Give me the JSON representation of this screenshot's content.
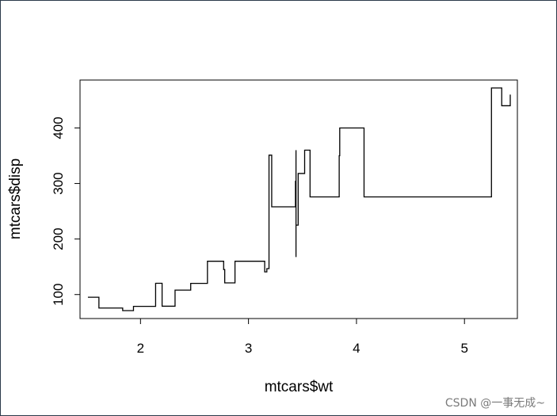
{
  "chart_data": {
    "type": "line",
    "step": true,
    "title": "",
    "xlabel": "mtcars$wt",
    "ylabel": "mtcars$disp",
    "xlim": [
      1.44,
      5.49
    ],
    "ylim": [
      56.8,
      486.3
    ],
    "x_ticks": [
      2,
      3,
      4,
      5
    ],
    "y_ticks": [
      100,
      200,
      300,
      400
    ],
    "grid": false,
    "legend": "none",
    "series": [
      {
        "x": [
          1.513,
          1.615,
          1.835,
          1.935,
          2.14,
          2.2,
          2.32,
          2.465,
          2.62,
          2.77,
          2.78,
          2.875,
          3.15,
          3.17,
          3.19,
          3.215,
          3.435,
          3.44,
          3.44,
          3.44,
          3.46,
          3.52,
          3.57,
          3.57,
          3.73,
          3.78,
          3.84,
          3.845,
          4.07,
          5.25,
          5.345,
          5.424
        ],
        "y": [
          95.1,
          75.7,
          71.1,
          78.7,
          120.3,
          79.0,
          108.0,
          120.1,
          160.0,
          145.0,
          121.0,
          160.0,
          140.8,
          146.7,
          351.0,
          258.0,
          304.0,
          360.0,
          167.6,
          225.0,
          318.0,
          360.0,
          350.0,
          275.8,
          275.8,
          275.8,
          350.0,
          400.0,
          275.8,
          472.0,
          440.0,
          460.0
        ]
      }
    ]
  },
  "watermark": "CSDN @一事无成~"
}
